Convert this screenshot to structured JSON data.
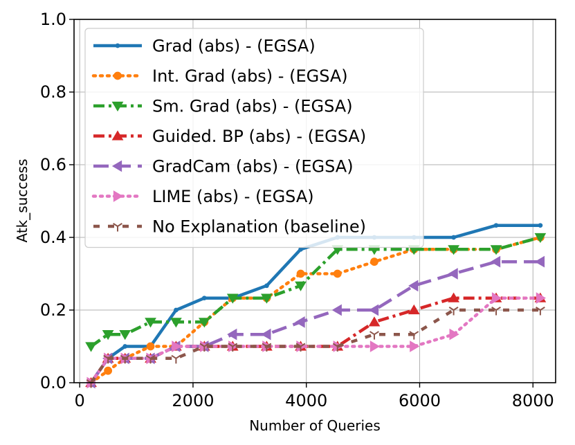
{
  "chart_data": {
    "type": "line",
    "title": "",
    "xlabel": "Number of Queries",
    "ylabel": "Atk_success",
    "xlim": [
      -100,
      8400
    ],
    "ylim": [
      0.0,
      1.0
    ],
    "xticks": [
      0,
      2000,
      4000,
      6000,
      8000
    ],
    "xtick_labels": [
      "0",
      "2000",
      "4000",
      "6000",
      "8000"
    ],
    "yticks": [
      0.0,
      0.2,
      0.4,
      0.6,
      0.8,
      1.0
    ],
    "ytick_labels": [
      "0.0",
      "0.2",
      "0.4",
      "0.6",
      "0.8",
      "1.0"
    ],
    "grid": true,
    "legend_position": "upper-left",
    "series": [
      {
        "name": "Grad (abs) - (EGSA)",
        "color": "#1f77b4",
        "dash": "solid",
        "marker": "point",
        "x": [
          200,
          500,
          800,
          1250,
          1700,
          2200,
          2700,
          3300,
          3900,
          4550,
          5200,
          5900,
          6600,
          7350,
          8130
        ],
        "y": [
          0.0,
          0.067,
          0.1,
          0.1,
          0.2,
          0.233,
          0.233,
          0.267,
          0.367,
          0.4,
          0.4,
          0.4,
          0.4,
          0.433,
          0.433
        ]
      },
      {
        "name": "Int. Grad (abs) - (EGSA)",
        "color": "#ff7f0e",
        "dash": "dotted",
        "marker": "circle",
        "x": [
          200,
          500,
          800,
          1250,
          1700,
          2200,
          2700,
          3300,
          3900,
          4550,
          5200,
          5900,
          6600,
          7350,
          8130
        ],
        "y": [
          0.0,
          0.033,
          0.067,
          0.1,
          0.1,
          0.167,
          0.233,
          0.233,
          0.3,
          0.3,
          0.333,
          0.367,
          0.367,
          0.367,
          0.4
        ]
      },
      {
        "name": "Sm. Grad (abs) - (EGSA)",
        "color": "#2ca02c",
        "dash": "dashdot",
        "marker": "triangle-down",
        "x": [
          200,
          500,
          800,
          1250,
          1700,
          2200,
          2700,
          3300,
          3900,
          4550,
          5200,
          5900,
          6600,
          7350,
          8130
        ],
        "y": [
          0.1,
          0.133,
          0.133,
          0.167,
          0.167,
          0.167,
          0.233,
          0.233,
          0.267,
          0.367,
          0.367,
          0.367,
          0.367,
          0.367,
          0.4
        ]
      },
      {
        "name": "Guided. BP (abs) - (EGSA)",
        "color": "#d62728",
        "dash": "dashdot",
        "marker": "triangle-up",
        "x": [
          200,
          500,
          800,
          1250,
          1700,
          2200,
          2700,
          3300,
          3900,
          4550,
          5200,
          5900,
          6600,
          7350,
          8130
        ],
        "y": [
          0.0,
          0.067,
          0.067,
          0.067,
          0.1,
          0.1,
          0.1,
          0.1,
          0.1,
          0.1,
          0.167,
          0.2,
          0.233,
          0.233,
          0.233
        ]
      },
      {
        "name": "GradCam (abs) - (EGSA)",
        "color": "#9467bd",
        "dash": "longdash",
        "marker": "triangle-left",
        "x": [
          200,
          500,
          800,
          1250,
          1700,
          2200,
          2700,
          3300,
          3900,
          4550,
          5200,
          5900,
          6600,
          7350,
          8130
        ],
        "y": [
          0.0,
          0.067,
          0.067,
          0.067,
          0.1,
          0.1,
          0.133,
          0.133,
          0.167,
          0.2,
          0.2,
          0.267,
          0.3,
          0.333,
          0.333
        ]
      },
      {
        "name": "LIME (abs) - (EGSA)",
        "color": "#e377c2",
        "dash": "dotted",
        "marker": "triangle-right",
        "x": [
          200,
          500,
          800,
          1250,
          1700,
          2200,
          2700,
          3300,
          3900,
          4550,
          5200,
          5900,
          6600,
          7350,
          8130
        ],
        "y": [
          0.0,
          0.067,
          0.067,
          0.067,
          0.1,
          0.1,
          0.1,
          0.1,
          0.1,
          0.1,
          0.1,
          0.1,
          0.133,
          0.233,
          0.233
        ]
      },
      {
        "name": "No Explanation (baseline)",
        "color": "#8c564b",
        "dash": "loosedash",
        "marker": "tri-down",
        "x": [
          200,
          500,
          800,
          1250,
          1700,
          2200,
          2700,
          3300,
          3900,
          4550,
          5200,
          5900,
          6600,
          7350,
          8130
        ],
        "y": [
          0.0,
          0.067,
          0.067,
          0.067,
          0.067,
          0.1,
          0.1,
          0.1,
          0.1,
          0.1,
          0.133,
          0.133,
          0.2,
          0.2,
          0.2
        ]
      }
    ]
  }
}
